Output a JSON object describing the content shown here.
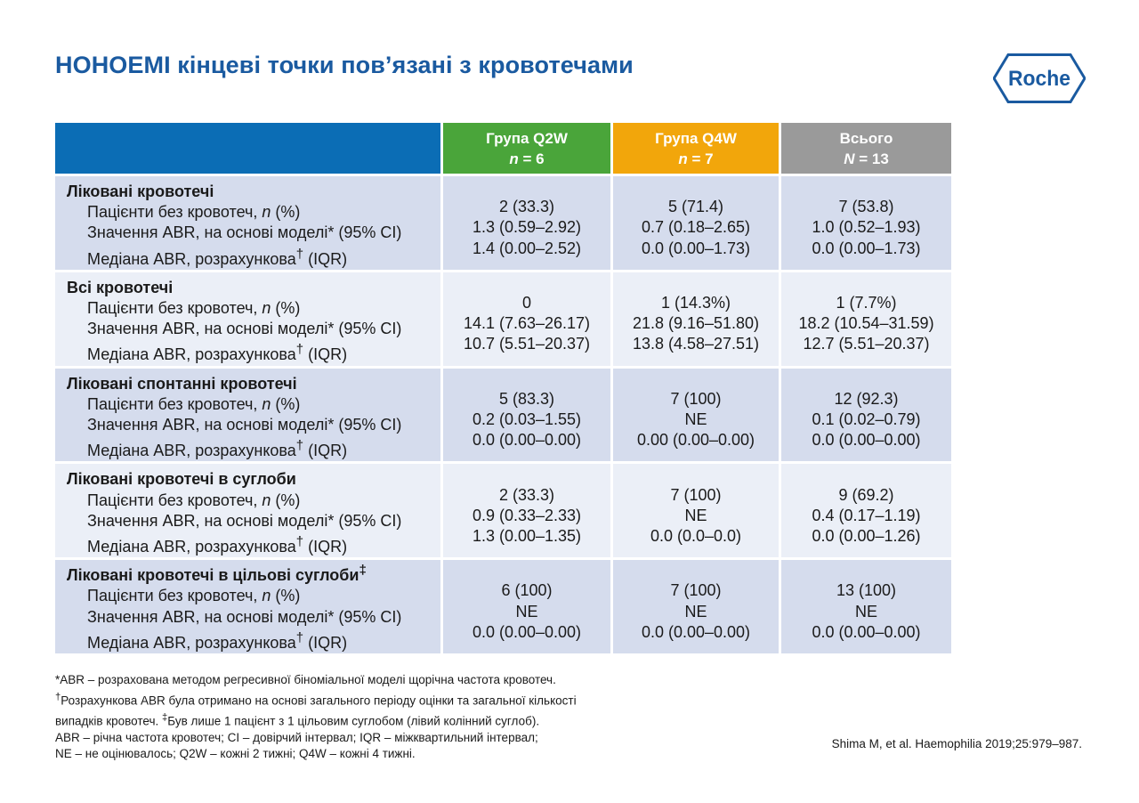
{
  "title": "HOHOEMI кінцеві точки пов’язані з кровотечами",
  "logo_text": "Roche",
  "columns": [
    {
      "name": "Група Q2W",
      "n_label": "n",
      "n_value": " = 6"
    },
    {
      "name": "Група Q4W",
      "n_label": "n",
      "n_value": " = 7"
    },
    {
      "name": "Всього",
      "n_label": "N",
      "n_value": " = 13"
    }
  ],
  "row_labels": {
    "patients_pre": "Пацієнти без кровотеч, ",
    "patients_n": "n",
    "patients_post": " (%)",
    "model": "Значення ABR, на основі моделі* (95% CI)",
    "median_pre": "Медіана ABR, розрахункова",
    "median_sup": "†",
    "median_post": " (IQR)"
  },
  "groups": [
    {
      "title": "Ліковані кровотечі",
      "sup": "",
      "values": [
        [
          "2 (33.3)",
          "5 (71.4)",
          "7 (53.8)"
        ],
        [
          "1.3 (0.59–2.92)",
          "0.7 (0.18–2.65)",
          "1.0 (0.52–1.93)"
        ],
        [
          "1.4 (0.00–2.52)",
          "0.0 (0.00–1.73)",
          "0.0 (0.00–1.73)"
        ]
      ]
    },
    {
      "title": "Всі кровотечі",
      "sup": "",
      "values": [
        [
          "0",
          "1 (14.3%)",
          "1 (7.7%)"
        ],
        [
          "14.1 (7.63–26.17)",
          "21.8 (9.16–51.80)",
          "18.2 (10.54–31.59)"
        ],
        [
          "10.7 (5.51–20.37)",
          "13.8 (4.58–27.51)",
          "12.7 (5.51–20.37)"
        ]
      ]
    },
    {
      "title": "Ліковані спонтанні кровотечі",
      "sup": "",
      "values": [
        [
          "5 (83.3)",
          "7 (100)",
          "12 (92.3)"
        ],
        [
          "0.2 (0.03–1.55)",
          "NE",
          "0.1 (0.02–0.79)"
        ],
        [
          "0.0 (0.00–0.00)",
          "0.00 (0.00–0.00)",
          "0.0 (0.00–0.00)"
        ]
      ]
    },
    {
      "title": "Ліковані кровотечі в суглоби",
      "sup": "",
      "values": [
        [
          "2 (33.3)",
          "7 (100)",
          "9 (69.2)"
        ],
        [
          "0.9 (0.33–2.33)",
          "NE",
          "0.4 (0.17–1.19)"
        ],
        [
          "1.3 (0.00–1.35)",
          "0.0 (0.0–0.0)",
          "0.0 (0.00–1.26)"
        ]
      ]
    },
    {
      "title": "Ліковані кровотечі в цільові суглоби",
      "sup": "‡",
      "values": [
        [
          "6 (100)",
          "7 (100)",
          "13 (100)"
        ],
        [
          "NE",
          "NE",
          "NE"
        ],
        [
          "0.0 (0.00–0.00)",
          "0.0 (0.00–0.00)",
          "0.0 (0.00–0.00)"
        ]
      ]
    }
  ],
  "footnotes": {
    "line1": "*ABR – розрахована методом регресивної біноміальної моделі щорічна частота кровотеч.",
    "line2_sup": "†",
    "line2": "Розрахункова ABR була отримано на основі загального періоду оцінки та загальної кількості",
    "line3a": "випадків кровотеч. ",
    "line3_sup": "‡",
    "line3b": "Був лише 1 пацієнт з 1 цільовим суглобом (лівий колінний суглоб).",
    "line4": "ABR – річна частота кровотеч; CI – довірчий інтервал; IQR – міжквартильний інтервал;",
    "line5": "NE – не оцінювалось; Q2W – кожні 2 тижні; Q4W – кожні 4 тижні."
  },
  "citation": "Shima M, et al. Haemophilia 2019;25:979–987."
}
